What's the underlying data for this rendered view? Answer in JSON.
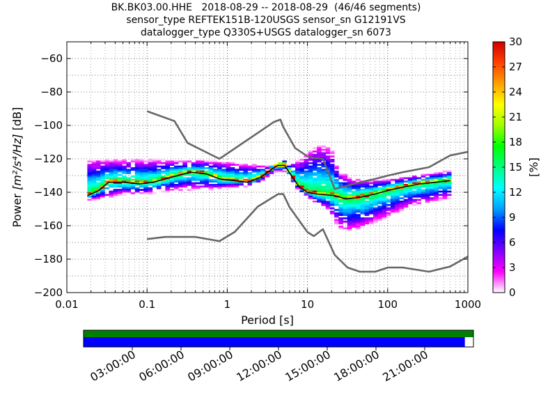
{
  "header": {
    "line1": "BK.BK03.00.HHE   2018-08-29 -- 2018-08-29  (46/46 segments)",
    "line2": "sensor_type REFTEK151B-120USGS sensor_sn G12191VS",
    "line3": "datalogger_type Q330S+USGS datalogger_sn 6073"
  },
  "chart_data": {
    "type": "heatmap",
    "xlabel": "Period [s]",
    "ylabel_prefix": "Power ",
    "ylabel_units": "[m²/s⁴/Hz]",
    "ylabel_suffix": " [dB]",
    "x_scale": "log",
    "xlim": [
      0.01,
      1000
    ],
    "ylim": [
      -200,
      -50
    ],
    "x_ticks": [
      0.01,
      0.1,
      1,
      10,
      100,
      1000
    ],
    "x_tick_labels": [
      "0.01",
      "0.1",
      "1",
      "10",
      "100",
      "1000"
    ],
    "y_ticks": [
      -200,
      -180,
      -160,
      -140,
      -120,
      -100,
      -80,
      -60
    ],
    "y_tick_labels": [
      "−200",
      "−180",
      "−160",
      "−140",
      "−120",
      "−100",
      "−80",
      "−60"
    ],
    "grid": "dotted",
    "colorbar": {
      "label": "[%]",
      "min": 0,
      "max": 30,
      "ticks": [
        0,
        3,
        6,
        9,
        12,
        15,
        18,
        21,
        24,
        27,
        30
      ],
      "colors": [
        "#ffffff",
        "#ff00ff",
        "#7f00ff",
        "#0000ff",
        "#00a0ff",
        "#00ffff",
        "#00ff80",
        "#00ff00",
        "#a0ff00",
        "#ffff00",
        "#ffa000",
        "#ff4000",
        "#d00000"
      ]
    },
    "noise_model_high": {
      "period": [
        0.1,
        0.22,
        0.32,
        0.8,
        3.8,
        4.6,
        5.0,
        7.0,
        10,
        12,
        15.6,
        21.9,
        31.6,
        45,
        70,
        101,
        154,
        328,
        600,
        10000
      ],
      "db": [
        -91.5,
        -97.4,
        -110.5,
        -120.0,
        -98.0,
        -96.5,
        -101.0,
        -113.5,
        -118.5,
        -119.5,
        -120.0,
        -138.0,
        -136.0,
        -134.0,
        -132.0,
        -130.0,
        -128.0,
        -125.0,
        -118.0,
        -106.0
      ]
    },
    "noise_model_low": {
      "period": [
        0.1,
        0.17,
        0.4,
        0.8,
        1.24,
        2.4,
        4.3,
        5.0,
        6.0,
        10,
        12,
        15.6,
        21.9,
        31.6,
        45,
        70,
        101,
        154,
        328,
        600,
        10000
      ],
      "db": [
        -168.0,
        -166.7,
        -166.7,
        -169.2,
        -163.7,
        -148.6,
        -141.1,
        -141.1,
        -149.0,
        -163.8,
        -166.2,
        -162.1,
        -177.5,
        -185.0,
        -187.5,
        -187.5,
        -185.0,
        -185.0,
        -187.5,
        -184.4,
        -151.5
      ]
    },
    "median_curve": {
      "period": [
        0.018,
        0.025,
        0.033,
        0.05,
        0.08,
        0.12,
        0.2,
        0.35,
        0.55,
        0.8,
        1.2,
        1.8,
        2.6,
        3.4,
        4.2,
        5.2,
        6.5,
        8,
        10,
        13,
        17,
        22,
        30,
        45,
        70,
        100,
        150,
        250,
        400,
        600
      ],
      "db": [
        -142,
        -139,
        -134,
        -134,
        -135,
        -134,
        -131,
        -128,
        -129,
        -132,
        -133,
        -134,
        -131,
        -127,
        -124,
        -124,
        -131,
        -137,
        -140,
        -141,
        -141.5,
        -142,
        -144,
        -143,
        -141,
        -139,
        -137,
        -135,
        -134,
        -133
      ]
    },
    "upper_ridge": {
      "period": [
        0.3,
        0.5,
        0.8,
        1.5,
        3,
        5,
        8,
        10,
        12,
        15,
        20,
        25,
        35,
        60,
        100,
        200,
        600
      ],
      "db": [
        -122,
        -122,
        -123,
        -124,
        -125,
        -124,
        -122,
        -118,
        -115,
        -113,
        -116,
        -129,
        -133,
        -134,
        -133,
        -131,
        -128
      ]
    },
    "lower_ridge": {
      "period": [
        0.02,
        0.05,
        0.1,
        0.3,
        0.8,
        2,
        4,
        6,
        8,
        12,
        18,
        25,
        35,
        60,
        100,
        200,
        600
      ],
      "db": [
        -145,
        -141,
        -141,
        -138,
        -138,
        -136,
        -128,
        -128,
        -138,
        -146,
        -150,
        -161,
        -163,
        -159,
        -154,
        -148,
        -143
      ]
    },
    "time_axis": {
      "labels": [
        "03:00:00",
        "06:00:00",
        "09:00:00",
        "12:00:00",
        "15:00:00",
        "18:00:00",
        "21:00:00"
      ],
      "coverage_end_fraction": 0.978
    }
  },
  "colors": {
    "noise_model": "#666666",
    "median": "#000000",
    "coverage_top": "#008000",
    "coverage_bottom": "#0000ff"
  }
}
